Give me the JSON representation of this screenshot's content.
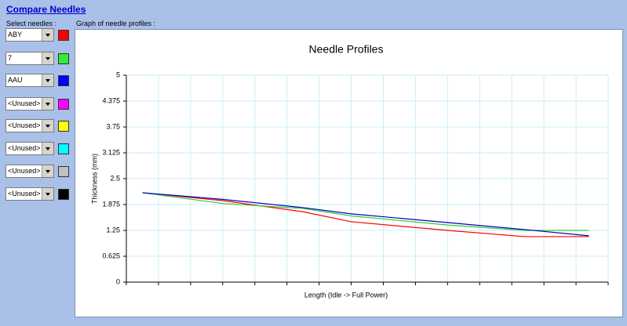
{
  "header": {
    "title": "Compare Needles",
    "select_label": "Select needles :",
    "graph_label": "Graph of needle profiles :"
  },
  "needles": [
    {
      "label": "ABY",
      "color": "#ff0000"
    },
    {
      "label": "7",
      "color": "#33ee33"
    },
    {
      "label": "AAU",
      "color": "#0000ff"
    },
    {
      "label": "<Unused>",
      "color": "#ff00ff"
    },
    {
      "label": "<Unused>",
      "color": "#ffff00"
    },
    {
      "label": "<Unused>",
      "color": "#00ffff"
    },
    {
      "label": "<Unused>",
      "color": "#c0c0c0"
    },
    {
      "label": "<Unused>",
      "color": "#000000"
    }
  ],
  "chart_data": {
    "type": "line",
    "title": "Needle Profiles",
    "x_label": "Length (Idle -> Full Power)",
    "y_label": "Thickness (mm)",
    "xlim": [
      0,
      15
    ],
    "xticks": [
      0,
      1,
      2,
      3,
      4,
      5,
      6,
      7,
      8,
      9,
      10,
      11,
      12,
      13,
      14,
      15
    ],
    "ylim": [
      0,
      5
    ],
    "yticks": [
      0,
      0.625,
      1.25,
      1.875,
      2.5,
      3.125,
      3.75,
      4.375,
      5
    ],
    "grid": true,
    "x": [
      0.5,
      3,
      5.5,
      7,
      10,
      12.4,
      14.4
    ],
    "series": [
      {
        "color": "#ff0000",
        "values": [
          2.16,
          1.97,
          1.7,
          1.46,
          1.25,
          1.1,
          1.1
        ]
      },
      {
        "color": "#33cc33",
        "values": [
          2.16,
          1.9,
          1.78,
          1.6,
          1.38,
          1.25,
          1.25
        ]
      },
      {
        "color": "#0000cc",
        "values": [
          2.16,
          2.0,
          1.8,
          1.65,
          1.44,
          1.27,
          1.12
        ]
      }
    ]
  }
}
